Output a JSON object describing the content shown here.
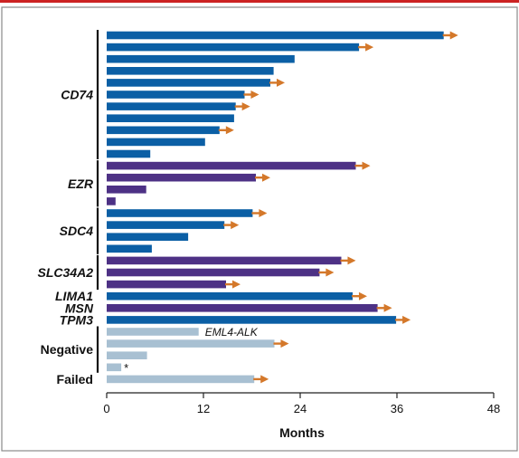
{
  "chart_data": {
    "type": "bar",
    "orientation": "horizontal",
    "xlabel": "Months",
    "xlim": [
      0,
      48
    ],
    "xticks": [
      "0",
      "12",
      "24",
      "36",
      "48"
    ],
    "colors": {
      "blue": "#0b5fa5",
      "purple": "#4d3185",
      "light": "#a8c0d2",
      "arrow": "#d4782a"
    },
    "groups": [
      {
        "label": "CD74",
        "style": "bold-italic",
        "bracket": true
      },
      {
        "label": "EZR",
        "style": "bold-italic",
        "bracket": true
      },
      {
        "label": "SDC4",
        "style": "bold-italic",
        "bracket": true
      },
      {
        "label": "SLC34A2",
        "style": "bold-italic",
        "bracket": true
      },
      {
        "label": "LIMA1",
        "style": "bold-italic",
        "bracket": false
      },
      {
        "label": "MSN",
        "style": "bold-italic",
        "bracket": false
      },
      {
        "label": "TPM3",
        "style": "bold-italic",
        "bracket": false
      },
      {
        "label": "Negative",
        "style": "bold",
        "bracket": true
      },
      {
        "label": "Failed",
        "style": "bold",
        "bracket": false
      }
    ],
    "bars": [
      {
        "group": "CD74",
        "value": 41.8,
        "color": "blue",
        "ongoing": true
      },
      {
        "group": "CD74",
        "value": 31.3,
        "color": "blue",
        "ongoing": true
      },
      {
        "group": "CD74",
        "value": 23.3,
        "color": "blue",
        "ongoing": false
      },
      {
        "group": "CD74",
        "value": 20.7,
        "color": "blue",
        "ongoing": false
      },
      {
        "group": "CD74",
        "value": 20.3,
        "color": "blue",
        "ongoing": true
      },
      {
        "group": "CD74",
        "value": 17.1,
        "color": "blue",
        "ongoing": true
      },
      {
        "group": "CD74",
        "value": 16.0,
        "color": "blue",
        "ongoing": true
      },
      {
        "group": "CD74",
        "value": 15.8,
        "color": "blue",
        "ongoing": false
      },
      {
        "group": "CD74",
        "value": 14.0,
        "color": "blue",
        "ongoing": true
      },
      {
        "group": "CD74",
        "value": 12.2,
        "color": "blue",
        "ongoing": false
      },
      {
        "group": "CD74",
        "value": 5.4,
        "color": "blue",
        "ongoing": false
      },
      {
        "group": "EZR",
        "value": 30.9,
        "color": "purple",
        "ongoing": true
      },
      {
        "group": "EZR",
        "value": 18.5,
        "color": "purple",
        "ongoing": true
      },
      {
        "group": "EZR",
        "value": 4.9,
        "color": "purple",
        "ongoing": false
      },
      {
        "group": "EZR",
        "value": 1.1,
        "color": "purple",
        "ongoing": false
      },
      {
        "group": "SDC4",
        "value": 18.1,
        "color": "blue",
        "ongoing": true
      },
      {
        "group": "SDC4",
        "value": 14.6,
        "color": "blue",
        "ongoing": true
      },
      {
        "group": "SDC4",
        "value": 10.1,
        "color": "blue",
        "ongoing": false
      },
      {
        "group": "SDC4",
        "value": 5.6,
        "color": "blue",
        "ongoing": false
      },
      {
        "group": "SLC34A2",
        "value": 29.1,
        "color": "purple",
        "ongoing": true
      },
      {
        "group": "SLC34A2",
        "value": 26.4,
        "color": "purple",
        "ongoing": true
      },
      {
        "group": "SLC34A2",
        "value": 14.8,
        "color": "purple",
        "ongoing": true
      },
      {
        "group": "LIMA1",
        "value": 30.5,
        "color": "blue",
        "ongoing": true
      },
      {
        "group": "MSN",
        "value": 33.6,
        "color": "purple",
        "ongoing": true
      },
      {
        "group": "TPM3",
        "value": 35.9,
        "color": "blue",
        "ongoing": true
      },
      {
        "group": "Negative",
        "value": 11.4,
        "color": "light",
        "ongoing": false,
        "annotation": "EML4-ALK"
      },
      {
        "group": "Negative",
        "value": 20.8,
        "color": "light",
        "ongoing": true
      },
      {
        "group": "Negative",
        "value": 5.0,
        "color": "light",
        "ongoing": false
      },
      {
        "group": "Negative",
        "value": 1.8,
        "color": "light",
        "ongoing": false,
        "annotation": "*"
      },
      {
        "group": "Failed",
        "value": 18.3,
        "color": "light",
        "ongoing": true
      }
    ]
  }
}
